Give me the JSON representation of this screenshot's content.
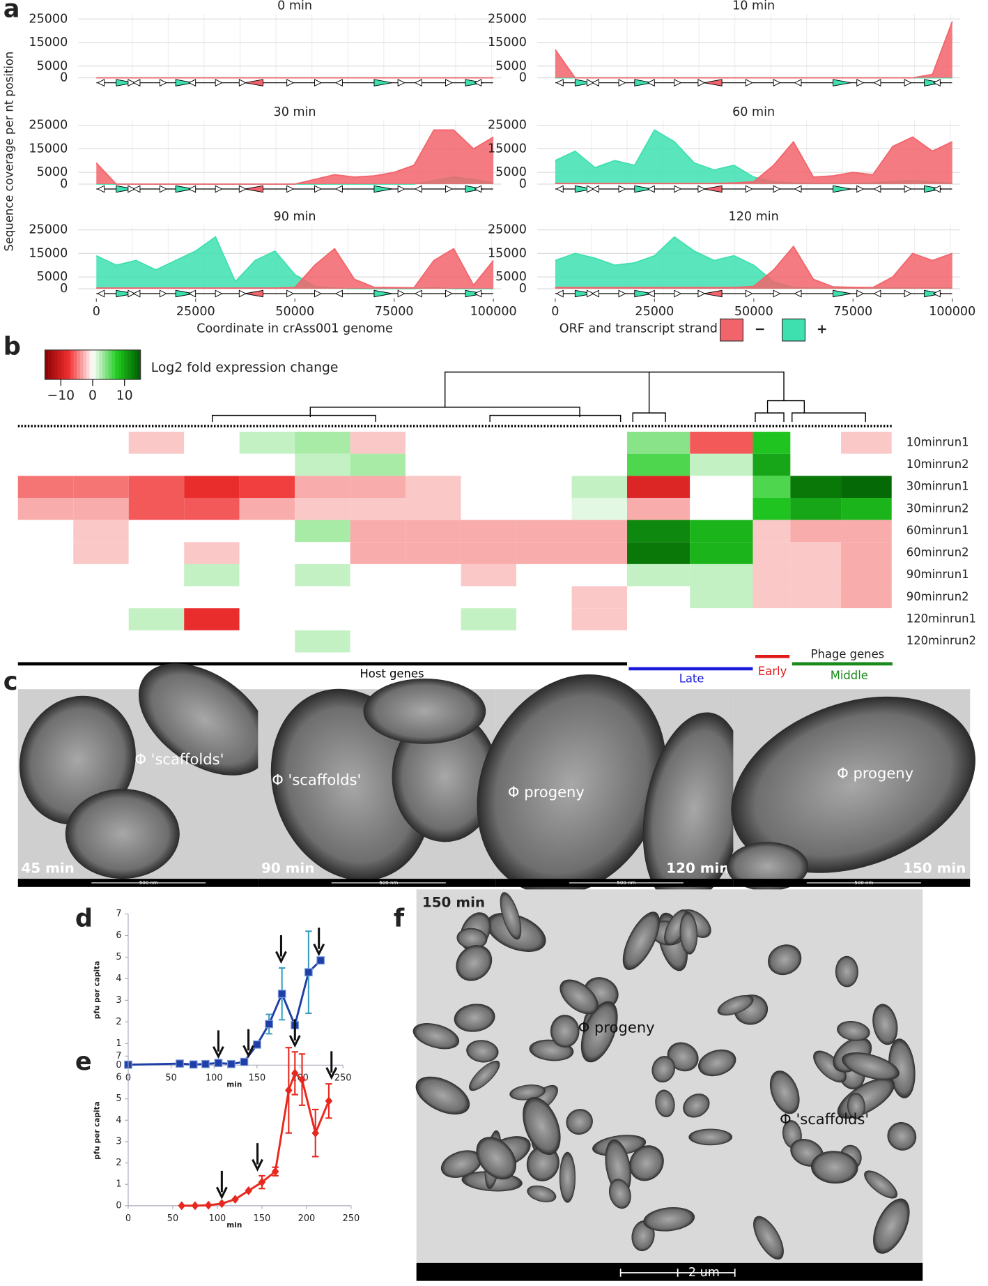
{
  "panel_labels": [
    "a",
    "b",
    "c",
    "d",
    "e",
    "f"
  ],
  "chart_data": [
    {
      "type": "area",
      "title": "0 min",
      "x": [
        0,
        5000,
        10000,
        15000,
        20000,
        25000,
        30000,
        35000,
        40000,
        45000,
        50000,
        55000,
        60000,
        65000,
        70000,
        75000,
        80000,
        85000,
        90000,
        95000,
        100000
      ],
      "xlim": [
        0,
        102000
      ],
      "ylim": [
        0,
        25000
      ],
      "yticks": [
        0,
        5000,
        15000,
        25000
      ],
      "grid": true,
      "series": [
        {
          "name": "−",
          "color": "#f2646b",
          "values": [
            0,
            0,
            0,
            0,
            0,
            0,
            0,
            0,
            0,
            0,
            0,
            0,
            0,
            0,
            0,
            0,
            0,
            0,
            0,
            0,
            0
          ]
        },
        {
          "name": "+",
          "color": "#3ee0b0",
          "values": [
            0,
            0,
            0,
            0,
            0,
            0,
            0,
            0,
            0,
            0,
            0,
            0,
            0,
            0,
            0,
            0,
            0,
            0,
            0,
            0,
            0
          ]
        }
      ]
    },
    {
      "type": "area",
      "title": "10 min",
      "x": [
        0,
        5000,
        10000,
        15000,
        20000,
        25000,
        30000,
        35000,
        40000,
        45000,
        50000,
        55000,
        60000,
        65000,
        70000,
        75000,
        80000,
        85000,
        90000,
        95000,
        100000
      ],
      "xlim": [
        0,
        102000
      ],
      "ylim": [
        0,
        25000
      ],
      "yticks": [
        0,
        5000,
        15000,
        25000
      ],
      "grid": true,
      "series": [
        {
          "name": "−",
          "color": "#f2646b",
          "values": [
            12000,
            0,
            0,
            0,
            0,
            0,
            0,
            0,
            0,
            0,
            0,
            0,
            0,
            0,
            0,
            0,
            0,
            0,
            0,
            1500,
            24000
          ]
        },
        {
          "name": "+",
          "color": "#3ee0b0",
          "values": [
            0,
            0,
            0,
            0,
            0,
            0,
            0,
            0,
            0,
            0,
            0,
            0,
            0,
            0,
            0,
            0,
            0,
            0,
            0,
            0,
            0
          ]
        }
      ]
    },
    {
      "type": "area",
      "title": "30 min",
      "ylabel": "Sequence coverage per nt position",
      "x": [
        0,
        5000,
        10000,
        15000,
        20000,
        25000,
        30000,
        35000,
        40000,
        45000,
        50000,
        55000,
        60000,
        65000,
        70000,
        75000,
        80000,
        85000,
        90000,
        95000,
        100000
      ],
      "xlim": [
        0,
        102000
      ],
      "ylim": [
        0,
        25000
      ],
      "yticks": [
        0,
        5000,
        15000,
        25000
      ],
      "grid": true,
      "series": [
        {
          "name": "−",
          "color": "#f2646b",
          "values": [
            9000,
            0,
            0,
            0,
            0,
            0,
            0,
            0,
            0,
            0,
            0,
            2000,
            4000,
            3000,
            3500,
            5000,
            8000,
            23000,
            23000,
            15000,
            20000
          ]
        },
        {
          "name": "+",
          "color": "#3ee0b0",
          "values": [
            0,
            0,
            0,
            0,
            0,
            0,
            0,
            0,
            0,
            0,
            0,
            0,
            0,
            0,
            0,
            0,
            0,
            1500,
            3000,
            2000,
            500
          ]
        }
      ]
    },
    {
      "type": "area",
      "title": "60 min",
      "x": [
        0,
        5000,
        10000,
        15000,
        20000,
        25000,
        30000,
        35000,
        40000,
        45000,
        50000,
        55000,
        60000,
        65000,
        70000,
        75000,
        80000,
        85000,
        90000,
        95000,
        100000
      ],
      "xlim": [
        0,
        102000
      ],
      "ylim": [
        0,
        25000
      ],
      "yticks": [
        0,
        5000,
        15000,
        25000
      ],
      "grid": true,
      "series": [
        {
          "name": "−",
          "color": "#f2646b",
          "values": [
            300,
            300,
            300,
            300,
            300,
            300,
            300,
            300,
            300,
            500,
            1000,
            8000,
            18000,
            3000,
            3500,
            5000,
            4000,
            16000,
            20000,
            14000,
            18000
          ]
        },
        {
          "name": "+",
          "color": "#3ee0b0",
          "values": [
            10000,
            14000,
            7000,
            10000,
            8000,
            23000,
            18000,
            9000,
            6000,
            8000,
            3000,
            1000,
            500,
            300,
            200,
            300,
            500,
            1000,
            1500,
            800,
            400
          ]
        }
      ]
    },
    {
      "type": "area",
      "title": "90 min",
      "x": [
        0,
        5000,
        10000,
        15000,
        20000,
        25000,
        30000,
        35000,
        40000,
        45000,
        50000,
        55000,
        60000,
        65000,
        70000,
        75000,
        80000,
        85000,
        90000,
        95000,
        100000
      ],
      "xlim": [
        0,
        102000
      ],
      "ylim": [
        0,
        25000
      ],
      "yticks": [
        0,
        5000,
        15000,
        25000
      ],
      "xticks": [
        0,
        25000,
        50000,
        75000,
        100000
      ],
      "grid": true,
      "xlabel": "Coordinate in crAss001 genome",
      "series": [
        {
          "name": "−",
          "color": "#f2646b",
          "values": [
            300,
            300,
            300,
            300,
            300,
            300,
            300,
            300,
            300,
            300,
            500,
            10000,
            17000,
            4000,
            600,
            500,
            400,
            12000,
            17000,
            1500,
            12000
          ]
        },
        {
          "name": "+",
          "color": "#3ee0b0",
          "values": [
            14000,
            10000,
            12000,
            8000,
            12000,
            16000,
            22000,
            3000,
            12000,
            16000,
            6000,
            1000,
            300,
            0,
            0,
            0,
            0,
            500,
            0,
            0,
            0
          ]
        }
      ]
    },
    {
      "type": "area",
      "title": "120 min",
      "x": [
        0,
        5000,
        10000,
        15000,
        20000,
        25000,
        30000,
        35000,
        40000,
        45000,
        50000,
        55000,
        60000,
        65000,
        70000,
        75000,
        80000,
        85000,
        90000,
        95000,
        100000
      ],
      "xlim": [
        0,
        102000
      ],
      "ylim": [
        0,
        25000
      ],
      "yticks": [
        0,
        5000,
        15000,
        25000
      ],
      "xticks": [
        0,
        25000,
        50000,
        75000,
        100000
      ],
      "grid": true,
      "legend_title": "ORF and transcript strand",
      "series": [
        {
          "name": "−",
          "color": "#f2646b",
          "values": [
            500,
            500,
            500,
            500,
            500,
            500,
            500,
            500,
            500,
            500,
            1000,
            8000,
            18000,
            4000,
            800,
            600,
            500,
            5000,
            15000,
            12000,
            15000
          ]
        },
        {
          "name": "+",
          "color": "#3ee0b0",
          "values": [
            12000,
            15000,
            13000,
            10000,
            11000,
            14000,
            22000,
            16000,
            12000,
            14000,
            10000,
            3000,
            500,
            300,
            300,
            300,
            300,
            300,
            300,
            300,
            300
          ]
        }
      ]
    },
    {
      "type": "heatmap",
      "rows": [
        "10minrun1",
        "10minrun2",
        "30minrun1",
        "30minrun2",
        "60minrun1",
        "60minrun2",
        "90minrun1",
        "90minrun2",
        "120minrun1",
        "120minrun2"
      ],
      "values": [
        [
          0,
          0,
          -2,
          0,
          2,
          3,
          -2,
          0,
          0,
          0,
          0,
          4,
          -6,
          8,
          0,
          -2
        ],
        [
          0,
          0,
          0,
          0,
          0,
          2,
          3,
          0,
          0,
          0,
          0,
          6,
          2,
          10,
          0,
          0
        ],
        [
          -5,
          -5,
          -6,
          -8,
          -7,
          -3,
          -3,
          -2,
          0,
          0,
          2,
          -9,
          0,
          6,
          13,
          14
        ],
        [
          -3,
          -3,
          -6,
          -6,
          -3,
          -2,
          -2,
          -2,
          0,
          0,
          1,
          -3,
          0,
          8,
          10,
          9
        ],
        [
          0,
          -2,
          0,
          0,
          0,
          3,
          -3,
          -3,
          -3,
          -3,
          -3,
          12,
          9,
          -2,
          -3,
          -3
        ],
        [
          0,
          -2,
          0,
          -2,
          0,
          0,
          -3,
          -3,
          -3,
          -3,
          -3,
          13,
          9,
          -2,
          -2,
          -3
        ],
        [
          0,
          0,
          0,
          2,
          0,
          2,
          0,
          0,
          -2,
          0,
          0,
          2,
          2,
          -2,
          -2,
          -3
        ],
        [
          0,
          0,
          0,
          0,
          0,
          0,
          0,
          0,
          0,
          0,
          -2,
          0,
          2,
          -2,
          -2,
          -3
        ],
        [
          0,
          0,
          2,
          -8,
          0,
          0,
          0,
          0,
          2,
          0,
          -2,
          0,
          0,
          0,
          0,
          0
        ],
        [
          0,
          0,
          0,
          0,
          0,
          2,
          0,
          0,
          0,
          0,
          0,
          0,
          0,
          0,
          0,
          0
        ]
      ],
      "colorbar": {
        "title": "Log2 fold expression change",
        "lim": [
          -15,
          15
        ],
        "ticks": [
          {
            "value": -10,
            "label": "−10"
          },
          0,
          10
        ],
        "colors": [
          "#8b0000",
          "#f03030",
          "#ffffff",
          "#22cc22",
          "#005a00"
        ]
      },
      "groups": [
        {
          "label": "Host genes",
          "color": "#000000"
        },
        {
          "label": "Late",
          "color": "#1a1adb"
        },
        {
          "label": "Early",
          "color": "#e01a1a"
        },
        {
          "label": "Middle",
          "color": "#1a8a1a"
        }
      ],
      "group_title": "Phage genes"
    },
    {
      "type": "line",
      "ylabel": "pfu per capita",
      "xlabel": "min",
      "marker": "square",
      "color": "#1f3fa8",
      "error_color": "#3a9ec2",
      "x": [
        0,
        60,
        76,
        90,
        105,
        120,
        135,
        150,
        164,
        179,
        194,
        210,
        224
      ],
      "values": [
        0.02,
        0.07,
        0.03,
        0.05,
        0.1,
        0.05,
        0.15,
        0.95,
        1.9,
        3.3,
        1.85,
        4.3,
        4.85
      ],
      "errors": [
        null,
        null,
        null,
        null,
        null,
        null,
        null,
        null,
        0.45,
        1.2,
        0.1,
        1.9,
        null
      ],
      "arrows": [
        105,
        140,
        178,
        222
      ],
      "xlim": [
        0,
        250
      ],
      "ylim": [
        0,
        7
      ],
      "xticks": [
        0,
        50,
        100,
        150,
        200,
        250
      ],
      "yticks": [
        0,
        1,
        2,
        3,
        4,
        5,
        6,
        7
      ]
    },
    {
      "type": "line",
      "ylabel": "pfu per capita",
      "xlabel": "min",
      "marker": "diamond",
      "color": "#e8281e",
      "error_color": "#e8281e",
      "x": [
        60,
        75,
        90,
        105,
        120,
        135,
        150,
        165,
        180,
        187,
        195,
        210,
        225
      ],
      "values": [
        0,
        0,
        0.02,
        0.1,
        0.3,
        0.7,
        1.1,
        1.6,
        5.4,
        6.2,
        5.9,
        3.4,
        4.9
      ],
      "errors": [
        null,
        null,
        null,
        null,
        null,
        null,
        0.3,
        0.2,
        2.0,
        1.0,
        1.2,
        1.1,
        0.8
      ],
      "arrows": [
        105,
        145,
        187,
        228
      ],
      "xlim": [
        0,
        250
      ],
      "ylim": [
        0,
        7
      ],
      "xticks": [
        0,
        50,
        100,
        150,
        200,
        250
      ],
      "yticks": [
        0,
        1,
        2,
        3,
        4,
        5,
        6,
        7
      ]
    }
  ],
  "micrographs": [
    {
      "time": "45 min",
      "label": "Φ 'scaffolds'",
      "scale": "500 nm"
    },
    {
      "time": "90 min",
      "label": "Φ 'scaffolds'",
      "scale": "500 nm"
    },
    {
      "time": "120 min",
      "label": "Φ progeny",
      "scale": "500 nm"
    },
    {
      "time": "150 min",
      "label": "Φ progeny",
      "scale": "500 nm"
    }
  ],
  "overview": {
    "time": "150 min",
    "labels": [
      "Φ progeny",
      "Φ 'scaffolds'"
    ],
    "scale": "2 um"
  }
}
